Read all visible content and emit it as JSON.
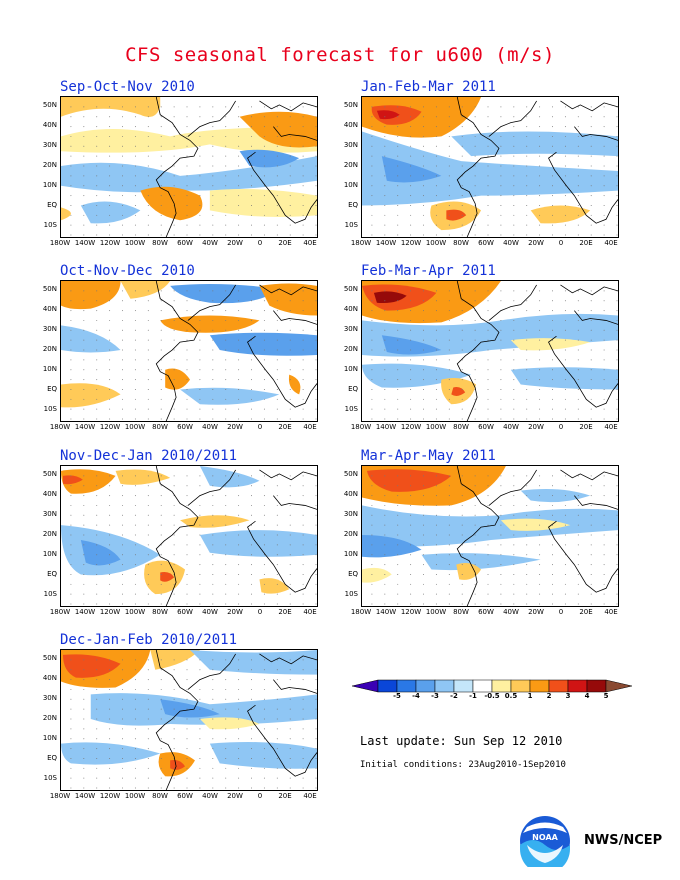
{
  "title": "CFS seasonal forecast for u600 (m/s)",
  "panels": [
    {
      "label": "Sep-Oct-Nov 2010"
    },
    {
      "label": "Jan-Feb-Mar 2011"
    },
    {
      "label": "Oct-Nov-Dec 2010"
    },
    {
      "label": "Feb-Mar-Apr 2011"
    },
    {
      "label": "Nov-Dec-Jan 2010/2011"
    },
    {
      "label": "Mar-Apr-May 2011"
    },
    {
      "label": "Dec-Jan-Feb 2010/2011"
    }
  ],
  "y_ticks": [
    "50N",
    "40N",
    "30N",
    "20N",
    "10N",
    "EQ",
    "10S"
  ],
  "x_ticks": [
    "180W",
    "140W",
    "120W",
    "100W",
    "80W",
    "60W",
    "40W",
    "20W",
    "0",
    "20E",
    "40E"
  ],
  "colorbar": {
    "labels": [
      "-5",
      "-4",
      "-3",
      "-2",
      "-1",
      "-0.5",
      "0.5",
      "1",
      "2",
      "3",
      "4",
      "5"
    ],
    "colors": [
      "#3a00b4",
      "#0a46d8",
      "#2a78e6",
      "#5aa0ec",
      "#8fc6f4",
      "#c4e6fa",
      "#ffffff",
      "#fff0a0",
      "#ffca58",
      "#fa9a14",
      "#f0501a",
      "#d01414",
      "#960a0a",
      "#8a4a32"
    ]
  },
  "last_update": "Last update: Sun Sep 12 2010",
  "initial_conditions": "Initial conditions: 23Aug2010-1Sep2010",
  "agency": "NWS/NCEP",
  "logo_text": "NOAA"
}
